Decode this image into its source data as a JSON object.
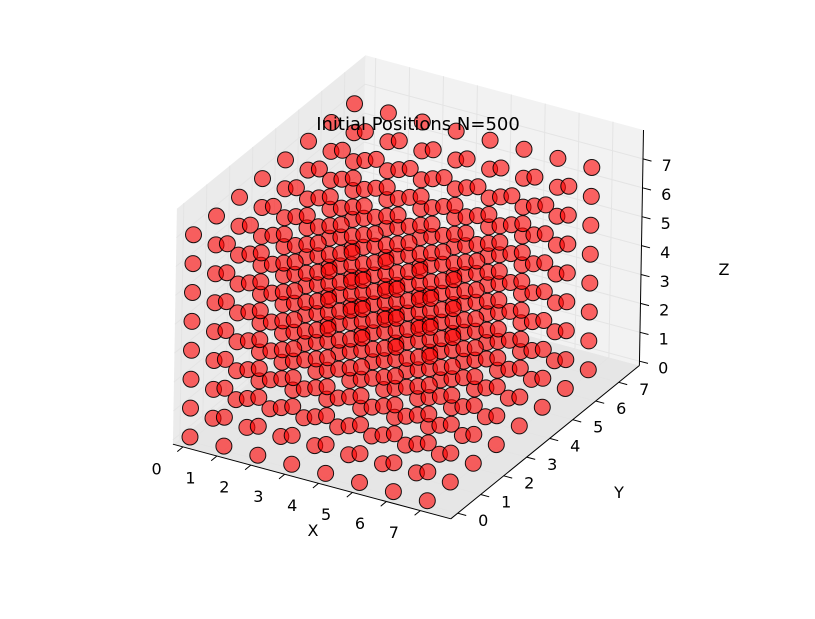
{
  "chart_data": {
    "type": "scatter3d",
    "title": "Initial Positions N=500",
    "xlabel": "X",
    "ylabel": "Y",
    "zlabel": "Z",
    "xlim": [
      0,
      8
    ],
    "ylim": [
      0,
      8
    ],
    "zlim": [
      0,
      8
    ],
    "x_ticks": [
      "0",
      "1",
      "2",
      "3",
      "4",
      "5",
      "6",
      "7"
    ],
    "y_ticks": [
      "0",
      "1",
      "2",
      "3",
      "4",
      "5",
      "6",
      "7"
    ],
    "z_ticks": [
      "0",
      "1",
      "2",
      "3",
      "4",
      "5",
      "6",
      "7"
    ],
    "grid": true,
    "points": {
      "description_of_lattice": "cubic lattice, 8 x 8 x 8 grid positions",
      "x_values": [
        0,
        1,
        2,
        3,
        4,
        5,
        6,
        7
      ],
      "y_values": [
        0,
        1,
        2,
        3,
        4,
        5,
        6,
        7
      ],
      "z_values": [
        0,
        1,
        2,
        3,
        4,
        5,
        6,
        7
      ],
      "count": 500
    },
    "marker_color": "#ff0000",
    "marker_edge_color": "#000000",
    "marker_alpha": 0.6
  }
}
